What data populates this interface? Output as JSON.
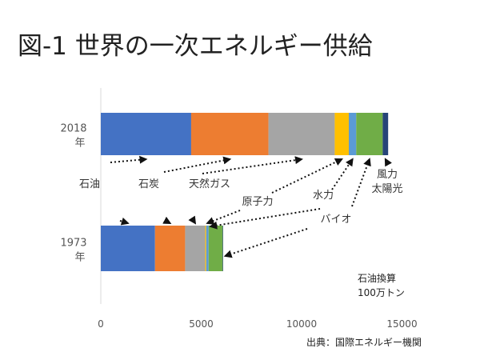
{
  "chart_data": {
    "type": "bar",
    "orientation": "horizontal",
    "stacked": true,
    "title": "図-1 世界の一次エネルギー供給",
    "categories": [
      [
        "2018",
        "年"
      ],
      [
        "1973",
        "年"
      ]
    ],
    "series": [
      {
        "name": "石油",
        "color": "#4472c4",
        "values": [
          4500,
          2700
        ]
      },
      {
        "name": "石炭",
        "color": "#ed7d31",
        "values": [
          3850,
          1500
        ]
      },
      {
        "name": "天然ガス",
        "color": "#a5a5a5",
        "values": [
          3300,
          1000
        ]
      },
      {
        "name": "原子力",
        "color": "#ffc000",
        "values": [
          700,
          50
        ]
      },
      {
        "name": "水力",
        "color": "#5b9bd5",
        "values": [
          370,
          120
        ]
      },
      {
        "name": "バイオ",
        "color": "#70ad47",
        "values": [
          1320,
          700
        ]
      },
      {
        "name": "風力 太陽光",
        "color": "#264478",
        "values": [
          270,
          10
        ]
      }
    ],
    "x_ticks": [
      0,
      5000,
      10000,
      15000
    ],
    "xlim": [
      0,
      15000
    ],
    "grid": false,
    "legend": "callout labels with dotted arrows",
    "unit_note": [
      "石油換算",
      "100万トン"
    ],
    "source": "出典：国際エネルギー機関"
  }
}
